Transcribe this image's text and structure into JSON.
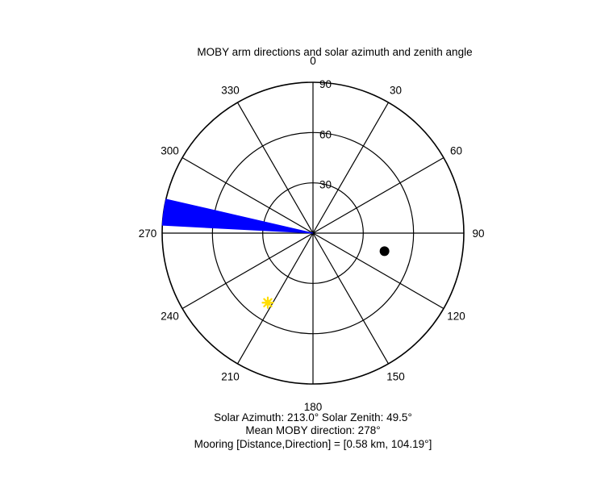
{
  "chart_data": {
    "type": "polar",
    "title": "MOBY arm directions and solar azimuth and zenith angle",
    "angle_ticks": [
      0,
      30,
      60,
      90,
      120,
      150,
      180,
      210,
      240,
      270,
      300,
      330
    ],
    "angle_tick_labels": [
      "0",
      "30",
      "60",
      "90",
      "120",
      "150",
      "180",
      "210",
      "240",
      "270",
      "300",
      "330"
    ],
    "radial_ticks": [
      30,
      60,
      90
    ],
    "radial_tick_labels": [
      "30",
      "60",
      "90"
    ],
    "rmax": 90,
    "angle_zero": "top",
    "angle_direction": "clockwise",
    "grid": true,
    "moby_arm": {
      "theta_start": 273,
      "theta_end": 283,
      "r": 90,
      "color": "#0000ff"
    },
    "sun": {
      "azimuth": 213.0,
      "zenith": 49.5,
      "color": "#ffdd00"
    },
    "mooring": {
      "direction": 104.19,
      "r": 44,
      "color": "#000000"
    },
    "footer": [
      "Solar Azimuth: 213.0°   Solar Zenith: 49.5°",
      "Mean MOBY direction: 278°",
      "Mooring [Distance,Direction] = [0.58 km, 104.19°]"
    ]
  }
}
